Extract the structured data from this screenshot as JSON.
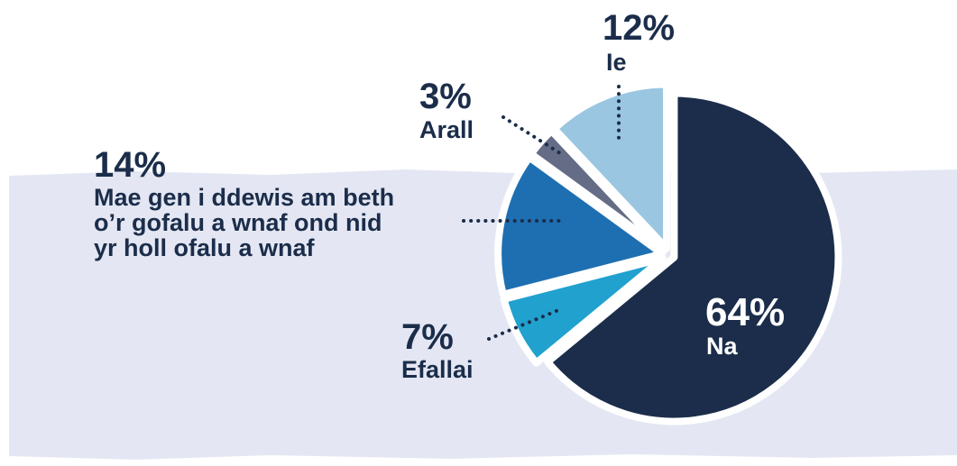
{
  "chart_data": {
    "type": "pie",
    "slices": [
      {
        "pct_label": "64%",
        "label": "Na",
        "value": 64,
        "color": "#1b2d4a"
      },
      {
        "pct_label": "7%",
        "label": "Efallai",
        "value": 7,
        "color": "#20a1ce"
      },
      {
        "pct_label": "14%",
        "label": "Mae gen i ddewis am beth o’r gofalu a wnaf ond nid yr holl ofalu a wnaf",
        "label_lines": [
          "Mae gen i ddewis am beth",
          "o’r gofalu a wnaf ond nid",
          "yr holl ofalu a wnaf"
        ],
        "value": 14,
        "color": "#1e6fb2"
      },
      {
        "pct_label": "3%",
        "label": "Arall",
        "value": 3,
        "color": "#646c86"
      },
      {
        "pct_label": "12%",
        "label": "Ie",
        "value": 12,
        "color": "#9ac6e1"
      }
    ]
  },
  "colors": {
    "band": "#e4e7f3",
    "text": "#1b2d4a",
    "border": "#ffffff"
  }
}
